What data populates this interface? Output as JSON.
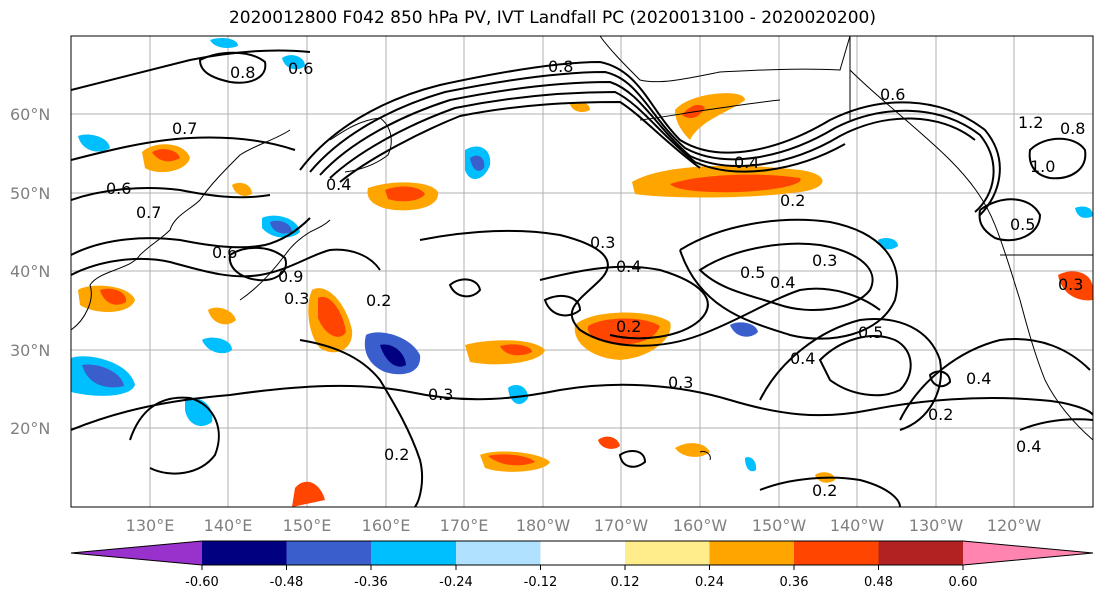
{
  "title": "2020012800 F042 850 hPa PV, IVT Landfall PC (2020013100 - 2020020200)",
  "lat_labels": [
    "60°N",
    "50°N",
    "40°N",
    "30°N",
    "20°N"
  ],
  "lon_labels": [
    "130°E",
    "140°E",
    "150°E",
    "160°E",
    "170°E",
    "180°W",
    "170°W",
    "160°W",
    "150°W",
    "140°W",
    "130°W",
    "120°W"
  ],
  "contour_labels": [
    "0.8",
    "0.6",
    "0.8",
    "0.7",
    "0.6",
    "0.7",
    "0.6",
    "0.9",
    "0.3",
    "0.2",
    "0.4",
    "0.3",
    "0.4",
    "0.5",
    "0.4",
    "0.3",
    "0.2",
    "0.2",
    "0.3",
    "0.3",
    "0.2",
    "0.4",
    "0.5",
    "0.4",
    "0.2",
    "0.4",
    "0.4",
    "0.2",
    "0.6",
    "0.8",
    "1.0",
    "1.2",
    "0.5",
    "0.3"
  ],
  "colorbar": {
    "colors": [
      "#9932cc",
      "#000080",
      "#3a5fcd",
      "#00bfff",
      "#b0e2ff",
      "#ffffff",
      "#ffec8b",
      "#ffa500",
      "#ff4500",
      "#b22222",
      "#ff85b0"
    ],
    "tick_labels": [
      "-0.60",
      "-0.48",
      "-0.36",
      "-0.24",
      "-0.12",
      "0.12",
      "0.24",
      "0.36",
      "0.48",
      "0.60"
    ]
  },
  "colors": {
    "land_outline": "#000000",
    "grid": "#b0b0b0"
  }
}
